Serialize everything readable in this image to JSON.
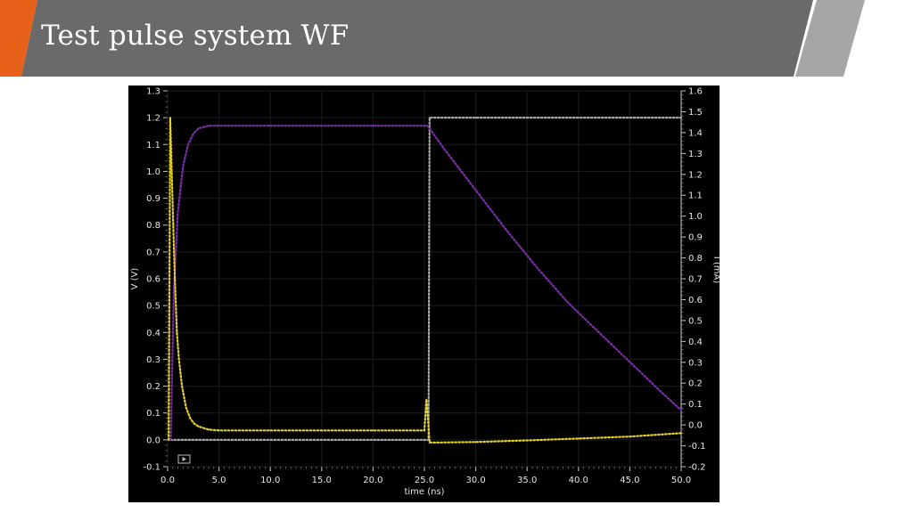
{
  "slide": {
    "title": "Test pulse system WF",
    "accent_color": "#e8611a",
    "banner_color": "#6a6a6a",
    "banner_secondary_color": "#a6a6a6"
  },
  "chart_data": {
    "type": "line",
    "title": "",
    "xlabel": "time (ns)",
    "ylabel_left": "V (V)",
    "ylabel_right": "I (mA)",
    "xlim": [
      0,
      50
    ],
    "ylim_left": [
      -0.1,
      1.3
    ],
    "ylim_right": [
      -0.2,
      1.6
    ],
    "x_ticks": [
      "0.0",
      "5.0",
      "10.0",
      "15.0",
      "20.0",
      "25.0",
      "30.0",
      "35.0",
      "40.0",
      "45.0",
      "50.0"
    ],
    "y_ticks_left": [
      "-0.1",
      "0.0",
      "0.1",
      "0.2",
      "0.3",
      "0.4",
      "0.5",
      "0.6",
      "0.7",
      "0.8",
      "0.9",
      "1.0",
      "1.1",
      "1.2",
      "1.3"
    ],
    "y_ticks_right": [
      "-0.2",
      "-0.1",
      "0.0",
      "0.1",
      "0.2",
      "0.3",
      "0.4",
      "0.5",
      "0.6",
      "0.7",
      "0.8",
      "0.9",
      "1.0",
      "1.1",
      "1.2",
      "1.3",
      "1.4",
      "1.5",
      "1.6"
    ],
    "background": "#000000",
    "grid": true,
    "series": [
      {
        "color": "#a8a8a8",
        "axis": "left",
        "x": [
          0.3,
          25.0,
          25.4,
          25.5,
          30,
          40,
          50
        ],
        "y": [
          0.0,
          0.0,
          0.0,
          1.2,
          1.2,
          1.2,
          1.2
        ]
      },
      {
        "color": "#7b2fa8",
        "axis": "left",
        "x": [
          0.3,
          0.6,
          1.0,
          1.5,
          2.0,
          2.5,
          3.0,
          4.0,
          5.0,
          10,
          15,
          20,
          25.3,
          27,
          30,
          33,
          36,
          39,
          42,
          45,
          48,
          50
        ],
        "y": [
          0.0,
          0.55,
          0.85,
          1.02,
          1.1,
          1.14,
          1.16,
          1.17,
          1.17,
          1.17,
          1.17,
          1.17,
          1.17,
          1.08,
          0.93,
          0.78,
          0.64,
          0.51,
          0.4,
          0.29,
          0.18,
          0.11
        ]
      },
      {
        "color": "#e6d22a",
        "axis": "left",
        "x": [
          0.1,
          0.25,
          0.4,
          0.55,
          0.7,
          0.9,
          1.1,
          1.4,
          1.8,
          2.2,
          2.6,
          3.0,
          4.0,
          5.0,
          10,
          15,
          20,
          25.0,
          25.2,
          25.4,
          25.5,
          26,
          30,
          35,
          40,
          45,
          50
        ],
        "y": [
          0.0,
          1.2,
          1.0,
          0.8,
          0.6,
          0.4,
          0.3,
          0.2,
          0.12,
          0.08,
          0.06,
          0.05,
          0.038,
          0.035,
          0.035,
          0.035,
          0.035,
          0.035,
          0.15,
          0.05,
          -0.01,
          -0.01,
          -0.008,
          -0.002,
          0.005,
          0.012,
          0.025
        ]
      }
    ]
  }
}
